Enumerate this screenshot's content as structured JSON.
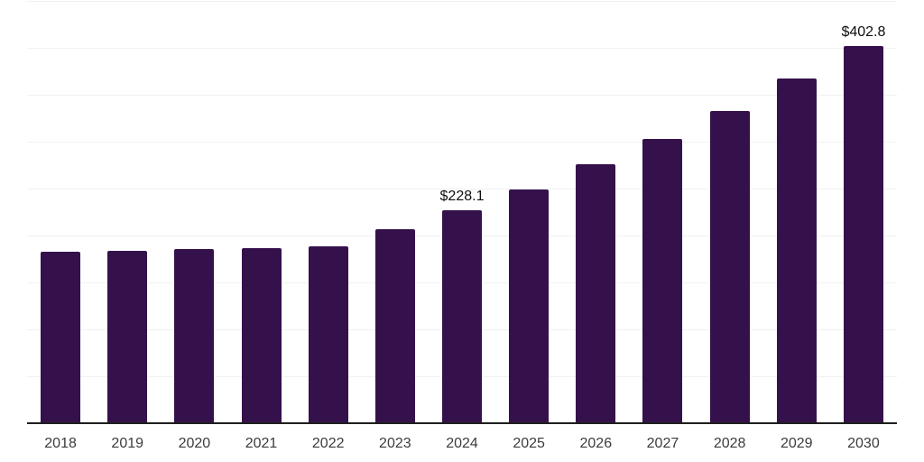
{
  "chart_data": {
    "type": "bar",
    "title": "",
    "xlabel": "",
    "ylabel": "",
    "categories": [
      "2018",
      "2019",
      "2020",
      "2021",
      "2022",
      "2023",
      "2024",
      "2025",
      "2026",
      "2027",
      "2028",
      "2029",
      "2030"
    ],
    "values": [
      183.4,
      184.8,
      186.4,
      187.9,
      189.4,
      207.5,
      228.1,
      250.5,
      277.3,
      303.7,
      334.2,
      367.9,
      402.8
    ],
    "value_labels": {
      "2024": "$228.1",
      "2030": "$402.8"
    },
    "ylim": [
      0,
      452
    ],
    "gridline_step": 50,
    "grid": "horizontal-only",
    "legend": "none",
    "y_axis_tick_labels": "none",
    "colors": {
      "bar": "#35114C",
      "gridline": "#f1f1f1",
      "axis_line": "#1f1f1f",
      "tick_label": "#3c3c3c",
      "value_label": "#0f0f0f",
      "background": "#ffffff"
    }
  }
}
